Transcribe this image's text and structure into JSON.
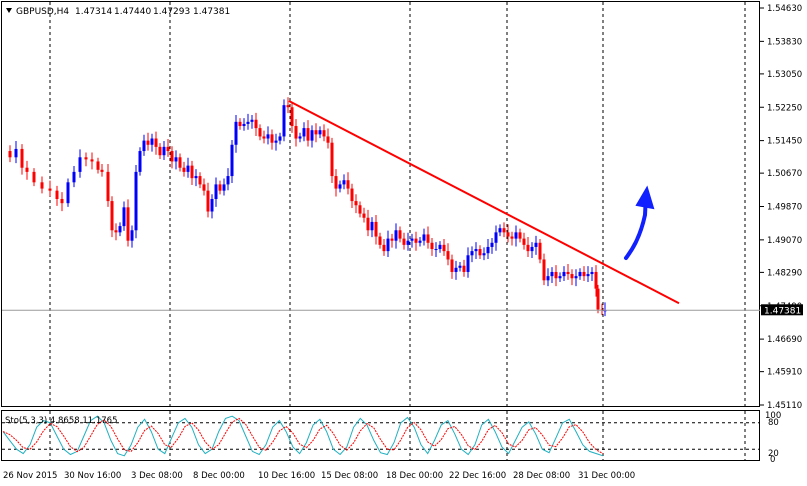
{
  "header": {
    "symbol": "GBPUSD,H4",
    "open": "1.47314",
    "high": "1.47440",
    "low": "1.47293",
    "close": "1.47381"
  },
  "chart_data": {
    "type": "candlestick",
    "symbol": "GBPUSD",
    "timeframe": "H4",
    "ylim": [
      1.4511,
      1.5463
    ],
    "yticks": [
      "1.54630",
      "1.53830",
      "1.53050",
      "1.52250",
      "1.51450",
      "1.50670",
      "1.49870",
      "1.49070",
      "1.48290",
      "1.47490",
      "1.46690",
      "1.45910",
      "1.45110"
    ],
    "current_price": "1.47381",
    "xticks": [
      "26 Nov 2015",
      "30 Nov 16:00",
      "3 Dec 08:00",
      "8 Dec 00:00",
      "10 Dec 16:00",
      "15 Dec 08:00",
      "18 Dec 00:00",
      "22 Dec 16:00",
      "28 Dec 08:00",
      "31 Dec 00:00"
    ],
    "close_path": [
      [
        0,
        1.512
      ],
      [
        8,
        1.5105
      ],
      [
        14,
        1.5125
      ],
      [
        20,
        1.508
      ],
      [
        25,
        1.507
      ],
      [
        32,
        1.5045
      ],
      [
        40,
        1.503
      ],
      [
        48,
        1.5025
      ],
      [
        55,
        1.5005
      ],
      [
        60,
        1.4995
      ],
      [
        66,
        1.5045
      ],
      [
        72,
        1.507
      ],
      [
        78,
        1.5105
      ],
      [
        84,
        1.51
      ],
      [
        90,
        1.5095
      ],
      [
        96,
        1.5075
      ],
      [
        100,
        1.507
      ],
      [
        106,
        1.5
      ],
      [
        110,
        1.493
      ],
      [
        114,
        1.4925
      ],
      [
        118,
        1.494
      ],
      [
        122,
        1.4985
      ],
      [
        126,
        1.4905
      ],
      [
        130,
        1.493
      ],
      [
        134,
        1.507
      ],
      [
        138,
        1.512
      ],
      [
        142,
        1.5145
      ],
      [
        146,
        1.5135
      ],
      [
        150,
        1.515
      ],
      [
        154,
        1.513
      ],
      [
        158,
        1.511
      ],
      [
        162,
        1.513
      ],
      [
        166,
        1.512
      ],
      [
        170,
        1.5095
      ],
      [
        174,
        1.5105
      ],
      [
        178,
        1.508
      ],
      [
        182,
        1.507
      ],
      [
        186,
        1.5085
      ],
      [
        190,
        1.5055
      ],
      [
        194,
        1.506
      ],
      [
        198,
        1.504
      ],
      [
        202,
        1.5025
      ],
      [
        206,
        1.4975
      ],
      [
        210,
        1.5005
      ],
      [
        214,
        1.504
      ],
      [
        218,
        1.5025
      ],
      [
        222,
        1.504
      ],
      [
        226,
        1.506
      ],
      [
        230,
        1.5135
      ],
      [
        234,
        1.519
      ],
      [
        238,
        1.518
      ],
      [
        242,
        1.5185
      ],
      [
        246,
        1.519
      ],
      [
        250,
        1.5195
      ],
      [
        254,
        1.5175
      ],
      [
        258,
        1.5155
      ],
      [
        262,
        1.515
      ],
      [
        266,
        1.516
      ],
      [
        270,
        1.514
      ],
      [
        274,
        1.5145
      ],
      [
        278,
        1.5155
      ],
      [
        282,
        1.523
      ],
      [
        286,
        1.5225
      ],
      [
        290,
        1.518
      ],
      [
        294,
        1.515
      ],
      [
        298,
        1.5155
      ],
      [
        302,
        1.5175
      ],
      [
        306,
        1.5145
      ],
      [
        310,
        1.517
      ],
      [
        314,
        1.516
      ],
      [
        318,
        1.517
      ],
      [
        322,
        1.5155
      ],
      [
        326,
        1.514
      ],
      [
        330,
        1.506
      ],
      [
        334,
        1.503
      ],
      [
        338,
        1.504
      ],
      [
        342,
        1.505
      ],
      [
        346,
        1.503
      ],
      [
        350,
        1.5
      ],
      [
        354,
        1.499
      ],
      [
        358,
        1.497
      ],
      [
        362,
        1.496
      ],
      [
        366,
        1.493
      ],
      [
        370,
        1.495
      ],
      [
        374,
        1.4915
      ],
      [
        378,
        1.4895
      ],
      [
        382,
        1.488
      ],
      [
        386,
        1.491
      ],
      [
        390,
        1.4905
      ],
      [
        394,
        1.493
      ],
      [
        398,
        1.491
      ],
      [
        402,
        1.4895
      ],
      [
        406,
        1.4905
      ],
      [
        410,
        1.491
      ],
      [
        414,
        1.49
      ],
      [
        418,
        1.4905
      ],
      [
        422,
        1.492
      ],
      [
        426,
        1.49
      ],
      [
        430,
        1.4885
      ],
      [
        434,
        1.4885
      ],
      [
        438,
        1.4895
      ],
      [
        442,
        1.488
      ],
      [
        446,
        1.486
      ],
      [
        450,
        1.483
      ],
      [
        454,
        1.484
      ],
      [
        458,
        1.4845
      ],
      [
        462,
        1.483
      ],
      [
        466,
        1.487
      ],
      [
        470,
        1.488
      ],
      [
        474,
        1.4885
      ],
      [
        478,
        1.487
      ],
      [
        482,
        1.4875
      ],
      [
        486,
        1.489
      ],
      [
        490,
        1.49
      ],
      [
        494,
        1.4925
      ],
      [
        498,
        1.4935
      ],
      [
        502,
        1.4925
      ],
      [
        506,
        1.4915
      ],
      [
        510,
        1.491
      ],
      [
        514,
        1.4925
      ],
      [
        518,
        1.491
      ],
      [
        522,
        1.4895
      ],
      [
        526,
        1.488
      ],
      [
        530,
        1.489
      ],
      [
        534,
        1.49
      ],
      [
        538,
        1.486
      ],
      [
        542,
        1.481
      ],
      [
        546,
        1.482
      ],
      [
        550,
        1.483
      ],
      [
        554,
        1.4815
      ],
      [
        558,
        1.482
      ],
      [
        562,
        1.483
      ],
      [
        566,
        1.4825
      ],
      [
        570,
        1.4815
      ],
      [
        574,
        1.482
      ],
      [
        578,
        1.483
      ],
      [
        582,
        1.482
      ],
      [
        586,
        1.4825
      ],
      [
        590,
        1.483
      ],
      [
        594,
        1.479
      ],
      [
        596,
        1.474
      ],
      [
        600,
        1.4738
      ],
      [
        603,
        1.47381
      ]
    ],
    "trendline": {
      "from": [
        289,
        1.524
      ],
      "to": [
        679,
        1.4755
      ]
    },
    "stochastic": {
      "label": "Sto(5,3,3) 4.8658 11.1765",
      "levels": [
        "100",
        "80",
        "20",
        "0"
      ],
      "main_values": [
        60,
        40,
        20,
        10,
        30,
        70,
        85,
        80,
        50,
        20,
        8,
        15,
        50,
        85,
        95,
        80,
        40,
        10,
        5,
        30,
        70,
        88,
        60,
        20,
        10,
        45,
        80,
        90,
        70,
        30,
        10,
        20,
        60,
        90,
        95,
        85,
        50,
        15,
        8,
        30,
        70,
        85,
        60,
        25,
        10,
        35,
        75,
        88,
        60,
        20,
        8,
        25,
        70,
        90,
        75,
        40,
        12,
        8,
        35,
        80,
        92,
        70,
        30,
        10,
        40,
        75,
        85,
        55,
        20,
        8,
        30,
        75,
        88,
        60,
        25,
        10,
        40,
        70,
        82,
        55,
        20,
        12,
        45,
        80,
        88,
        60,
        30,
        15,
        10,
        5
      ]
    },
    "colors": {
      "bull": "#0000ff",
      "bear": "#ff0000",
      "grid": "#000000",
      "trend": "#ff0000"
    }
  }
}
